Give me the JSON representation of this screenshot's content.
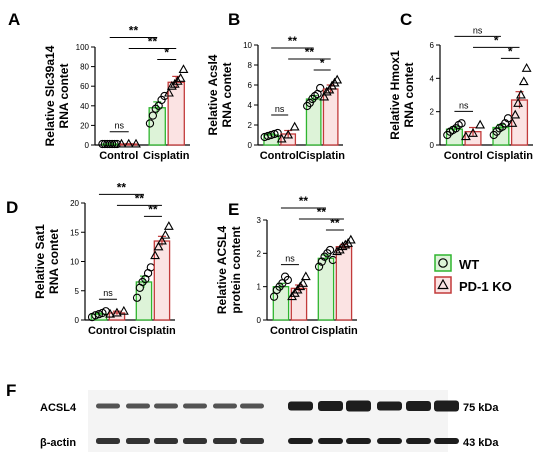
{
  "chart_data": [
    {
      "panel": "A",
      "type": "bar",
      "ylabel": "Relative Slc39a14 RNA contet",
      "ylim": [
        0,
        100
      ],
      "yticks": [
        0,
        20,
        40,
        60,
        80,
        100
      ],
      "categories": [
        "Control",
        "Cisplatin"
      ],
      "series": [
        {
          "name": "WT",
          "values": [
            1,
            38
          ],
          "err": [
            0.3,
            6
          ],
          "points": [
            [
              1,
              1,
              1,
              1,
              1,
              1,
              1
            ],
            [
              22,
              30,
              37,
              40,
              46,
              50
            ]
          ]
        },
        {
          "name": "PD-1 KO",
          "values": [
            1,
            64
          ],
          "err": [
            0.3,
            6
          ],
          "points": [
            [
              1,
              1,
              1
            ],
            [
              53,
              60,
              62,
              65,
              68,
              77
            ]
          ]
        }
      ],
      "significance": [
        {
          "from": [
            0,
            0
          ],
          "to": [
            0,
            1
          ],
          "label": "ns"
        },
        {
          "from": [
            0,
            0
          ],
          "to": [
            1,
            0
          ],
          "label": "**"
        },
        {
          "from": [
            0,
            1
          ],
          "to": [
            1,
            1
          ],
          "label": "**"
        },
        {
          "from": [
            1,
            0
          ],
          "to": [
            1,
            1
          ],
          "label": "*"
        }
      ]
    },
    {
      "panel": "B",
      "type": "bar",
      "ylabel": "Relative Acsl4 RNA contet",
      "ylim": [
        0,
        10
      ],
      "yticks": [
        0,
        2,
        4,
        6,
        8,
        10
      ],
      "categories": [
        "Control",
        "Cisplatin"
      ],
      "series": [
        {
          "name": "WT",
          "values": [
            1.0,
            4.6
          ],
          "err": [
            0.12,
            0.35
          ],
          "points": [
            [
              0.8,
              0.9,
              1.0,
              1.1,
              1.2
            ],
            [
              3.9,
              4.2,
              4.6,
              4.9,
              5.1,
              5.7
            ]
          ]
        },
        {
          "name": "PD-1 KO",
          "values": [
            1.1,
            5.6
          ],
          "err": [
            0.35,
            0.4
          ],
          "points": [
            [
              0.6,
              1.0,
              1.8
            ],
            [
              4.8,
              5.3,
              5.5,
              5.9,
              6.2,
              6.5
            ]
          ]
        }
      ],
      "significance": [
        {
          "from": [
            0,
            0
          ],
          "to": [
            0,
            1
          ],
          "label": "ns"
        },
        {
          "from": [
            0,
            0
          ],
          "to": [
            1,
            0
          ],
          "label": "**"
        },
        {
          "from": [
            0,
            1
          ],
          "to": [
            1,
            1
          ],
          "label": "**"
        },
        {
          "from": [
            1,
            0
          ],
          "to": [
            1,
            1
          ],
          "label": "*"
        }
      ]
    },
    {
      "panel": "C",
      "type": "bar",
      "ylabel": "Relative Hmox1 RNA contet",
      "ylim": [
        0,
        6
      ],
      "yticks": [
        0,
        2,
        4,
        6
      ],
      "categories": [
        "Control",
        "Cisplatin"
      ],
      "series": [
        {
          "name": "WT",
          "values": [
            0.95,
            1.05
          ],
          "err": [
            0.15,
            0.18
          ],
          "points": [
            [
              0.6,
              0.8,
              0.9,
              1.0,
              1.2,
              1.3
            ],
            [
              0.6,
              0.8,
              1.0,
              1.1,
              1.3,
              1.6
            ]
          ]
        },
        {
          "name": "PD-1 KO",
          "values": [
            0.8,
            2.7
          ],
          "err": [
            0.25,
            0.5
          ],
          "points": [
            [
              0.5,
              0.7,
              1.2
            ],
            [
              1.3,
              1.8,
              2.5,
              3.0,
              3.8,
              4.6
            ]
          ]
        }
      ],
      "significance": [
        {
          "from": [
            0,
            0
          ],
          "to": [
            0,
            1
          ],
          "label": "ns"
        },
        {
          "from": [
            0,
            0
          ],
          "to": [
            1,
            0
          ],
          "label": "ns"
        },
        {
          "from": [
            0,
            1
          ],
          "to": [
            1,
            1
          ],
          "label": "*"
        },
        {
          "from": [
            1,
            0
          ],
          "to": [
            1,
            1
          ],
          "label": "*"
        }
      ]
    },
    {
      "panel": "D",
      "type": "bar",
      "ylabel": "Relative Sat1 RNA contet",
      "ylim": [
        0,
        20
      ],
      "yticks": [
        0,
        5,
        10,
        15,
        20
      ],
      "categories": [
        "Control",
        "Cisplatin"
      ],
      "series": [
        {
          "name": "WT",
          "values": [
            1.0,
            6.5
          ],
          "err": [
            0.2,
            1.0
          ],
          "points": [
            [
              0.5,
              0.8,
              1.0,
              1.2,
              1.5
            ],
            [
              3.8,
              5.5,
              6.5,
              7.0,
              8.0,
              9.0
            ]
          ]
        },
        {
          "name": "PD-1 KO",
          "values": [
            1.2,
            13.5
          ],
          "err": [
            0.3,
            0.8
          ],
          "points": [
            [
              1.0,
              1.2,
              1.5
            ],
            [
              11.0,
              12.5,
              13.5,
              14.5,
              16.0
            ]
          ]
        }
      ],
      "significance": [
        {
          "from": [
            0,
            0
          ],
          "to": [
            0,
            1
          ],
          "label": "ns"
        },
        {
          "from": [
            0,
            0
          ],
          "to": [
            1,
            0
          ],
          "label": "**"
        },
        {
          "from": [
            0,
            1
          ],
          "to": [
            1,
            1
          ],
          "label": "**"
        },
        {
          "from": [
            1,
            0
          ],
          "to": [
            1,
            1
          ],
          "label": "**"
        }
      ]
    },
    {
      "panel": "E",
      "type": "bar",
      "ylabel": "Relative ACSL4 protein content",
      "ylim": [
        0,
        3
      ],
      "yticks": [
        0,
        1,
        2,
        3
      ],
      "categories": [
        "Control",
        "Cisplatin"
      ],
      "series": [
        {
          "name": "WT",
          "values": [
            1.0,
            1.85
          ],
          "err": [
            0.1,
            0.1
          ],
          "points": [
            [
              0.7,
              0.9,
              1.0,
              1.1,
              1.3,
              1.2
            ],
            [
              1.6,
              1.75,
              1.9,
              2.0,
              2.1,
              1.8
            ]
          ]
        },
        {
          "name": "PD-1 KO",
          "values": [
            0.95,
            2.2
          ],
          "err": [
            0.1,
            0.07
          ],
          "points": [
            [
              0.7,
              0.8,
              0.9,
              1.0,
              1.1,
              1.3
            ],
            [
              2.05,
              2.1,
              2.2,
              2.25,
              2.3,
              2.4
            ]
          ]
        }
      ],
      "significance": [
        {
          "from": [
            0,
            0
          ],
          "to": [
            0,
            1
          ],
          "label": "ns"
        },
        {
          "from": [
            0,
            0
          ],
          "to": [
            1,
            0
          ],
          "label": "**"
        },
        {
          "from": [
            0,
            1
          ],
          "to": [
            1,
            1
          ],
          "label": "**"
        },
        {
          "from": [
            1,
            0
          ],
          "to": [
            1,
            1
          ],
          "label": "**"
        }
      ]
    }
  ],
  "legend": {
    "items": [
      {
        "label": "WT",
        "color": "#2fb52f",
        "fill": "#ddf3d8",
        "marker": "circle"
      },
      {
        "label": "PD-1 KO",
        "color": "#c23a3a",
        "fill": "#fbe3e3",
        "marker": "triangle"
      }
    ]
  },
  "colors": {
    "wt_edge": "#2fb52f",
    "wt_fill": "#ddf3d8",
    "ko_edge": "#c23a3a",
    "ko_fill": "#fbe3e3",
    "ink": "#000000"
  },
  "blot": {
    "panel": "F",
    "rows": [
      {
        "label": "ACSL4",
        "size": "75 kDa",
        "left_band_count": 6,
        "right_band_count": 6
      },
      {
        "label": "β-actin",
        "size": "43 kDa",
        "left_band_count": 6,
        "right_band_count": 6
      }
    ]
  }
}
